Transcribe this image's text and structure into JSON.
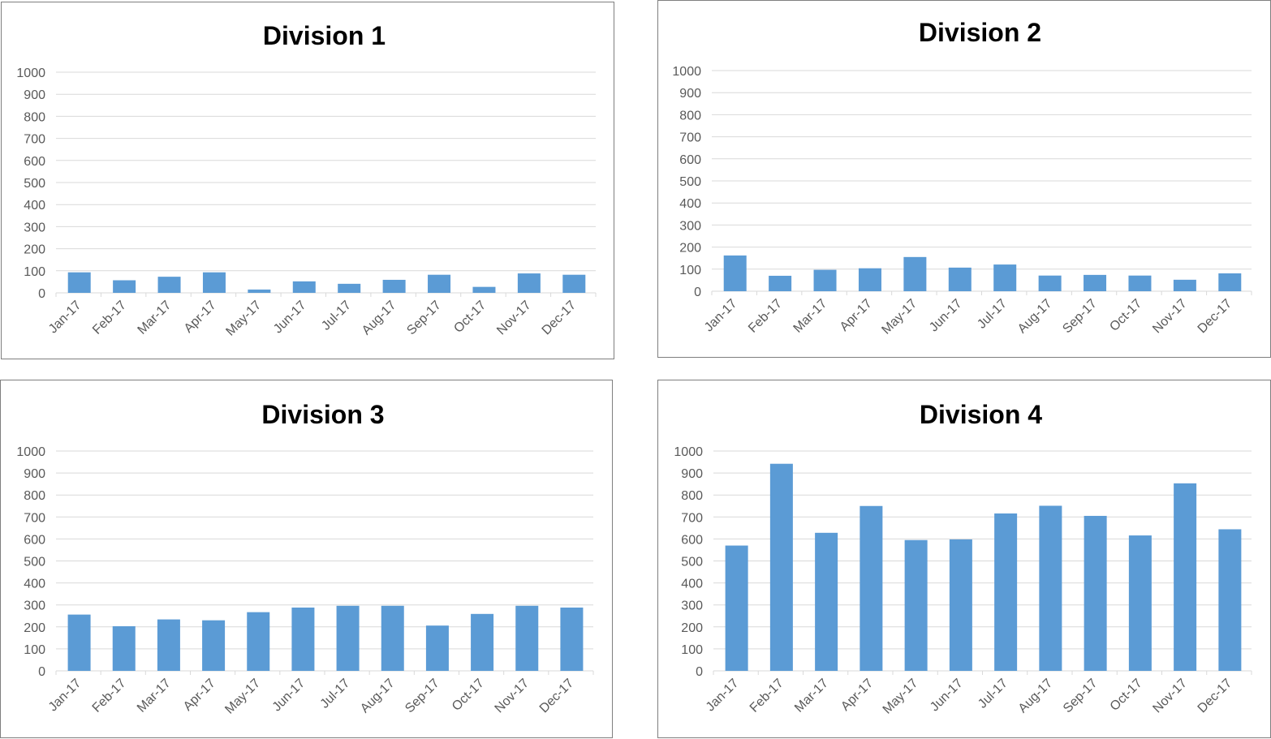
{
  "chart_data": [
    {
      "type": "bar",
      "title": "Division 1",
      "categories": [
        "Jan-17",
        "Feb-17",
        "Mar-17",
        "Apr-17",
        "May-17",
        "Jun-17",
        "Jul-17",
        "Aug-17",
        "Sep-17",
        "Oct-17",
        "Nov-17",
        "Dec-17"
      ],
      "values": [
        93,
        57,
        73,
        93,
        15,
        52,
        41,
        59,
        82,
        27,
        88,
        82
      ],
      "ylim": [
        0,
        1000
      ],
      "yticks": [
        "0",
        "100",
        "200",
        "300",
        "400",
        "500",
        "600",
        "700",
        "800",
        "900",
        "1000"
      ],
      "grid": true,
      "color": "#5b9bd5"
    },
    {
      "type": "bar",
      "title": "Division 2",
      "categories": [
        "Jan-17",
        "Feb-17",
        "Mar-17",
        "Apr-17",
        "May-17",
        "Jun-17",
        "Jul-17",
        "Aug-17",
        "Sep-17",
        "Oct-17",
        "Nov-17",
        "Dec-17"
      ],
      "values": [
        162,
        70,
        97,
        104,
        155,
        107,
        121,
        71,
        74,
        71,
        52,
        81
      ],
      "ylim": [
        0,
        1000
      ],
      "yticks": [
        "0",
        "100",
        "200",
        "300",
        "400",
        "500",
        "600",
        "700",
        "800",
        "900",
        "1000"
      ],
      "grid": true,
      "color": "#5b9bd5"
    },
    {
      "type": "bar",
      "title": "Division 3",
      "categories": [
        "Jan-17",
        "Feb-17",
        "Mar-17",
        "Apr-17",
        "May-17",
        "Jun-17",
        "Jul-17",
        "Aug-17",
        "Sep-17",
        "Oct-17",
        "Nov-17",
        "Dec-17"
      ],
      "values": [
        256,
        203,
        234,
        230,
        267,
        288,
        296,
        296,
        206,
        259,
        296,
        288
      ],
      "ylim": [
        0,
        1000
      ],
      "yticks": [
        "0",
        "100",
        "200",
        "300",
        "400",
        "500",
        "600",
        "700",
        "800",
        "900",
        "1000"
      ],
      "grid": true,
      "color": "#5b9bd5"
    },
    {
      "type": "bar",
      "title": "Division 4",
      "categories": [
        "Jan-17",
        "Feb-17",
        "Mar-17",
        "Apr-17",
        "May-17",
        "Jun-17",
        "Jul-17",
        "Aug-17",
        "Sep-17",
        "Oct-17",
        "Nov-17",
        "Dec-17"
      ],
      "values": [
        570,
        942,
        628,
        750,
        595,
        598,
        716,
        751,
        705,
        616,
        853,
        644
      ],
      "ylim": [
        0,
        1000
      ],
      "yticks": [
        "0",
        "100",
        "200",
        "300",
        "400",
        "500",
        "600",
        "700",
        "800",
        "900",
        "1000"
      ],
      "grid": true,
      "color": "#5b9bd5"
    }
  ]
}
